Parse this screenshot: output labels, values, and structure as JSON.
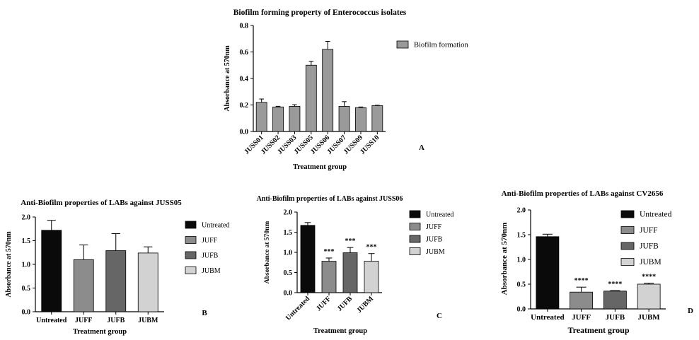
{
  "chart_data": [
    {
      "panel": "A",
      "type": "bar",
      "title": "Biofilm forming property of Enterococcus isolates",
      "xlabel": "Treatment group",
      "ylabel": "Absorbance at 570nm",
      "ylim": [
        0,
        0.8
      ],
      "yticks": [
        "0.0",
        "0.2",
        "0.4",
        "0.6",
        "0.8"
      ],
      "categories": [
        "JUSS01",
        "JUSS02",
        "JUSS03",
        "JUSS05",
        "JUSS06",
        "JUSS07",
        "JUSS09",
        "JUSS10"
      ],
      "series": [
        {
          "name": "Biofilm formation",
          "values": [
            0.22,
            0.185,
            0.19,
            0.5,
            0.62,
            0.19,
            0.18,
            0.195
          ],
          "errors": [
            0.025,
            0.005,
            0.012,
            0.03,
            0.06,
            0.035,
            0.005,
            0.003
          ]
        }
      ],
      "bar_colors": [
        "#9a9a9a"
      ],
      "legend_position": "right",
      "grid": false,
      "annotations": []
    },
    {
      "panel": "B",
      "type": "bar",
      "title": "Anti-Biofilm properties of LABs against JUSS05",
      "xlabel": "Treatment group",
      "ylabel": "Absorbance at 570nm",
      "ylim": [
        0,
        2.0
      ],
      "yticks": [
        "0.0",
        "0.5",
        "1.0",
        "1.5",
        "2.0"
      ],
      "categories": [
        "Untreated",
        "JUFF",
        "JUFB",
        "JUBM"
      ],
      "values": [
        1.72,
        1.1,
        1.29,
        1.24
      ],
      "errors": [
        0.21,
        0.31,
        0.36,
        0.13
      ],
      "bar_colors": [
        "#0a0a0a",
        "#8c8c8c",
        "#666666",
        "#d2d2d2"
      ],
      "legend": [
        "Untreated",
        "JUFF",
        "JUFB",
        "JUBM"
      ],
      "legend_position": "right",
      "grid": false,
      "annotations": []
    },
    {
      "panel": "C",
      "type": "bar",
      "title": "Anti-Biofilm properties of LABs against JUSS06",
      "xlabel": "Treatment group",
      "ylabel": "Absorbance at 570nm",
      "ylim": [
        0,
        2.0
      ],
      "yticks": [
        "0.0",
        "0.5",
        "1.0",
        "1.5",
        "2.0"
      ],
      "categories": [
        "Untreated",
        "JUFF",
        "JUFB",
        "JUBM"
      ],
      "values": [
        1.67,
        0.78,
        0.99,
        0.78
      ],
      "errors": [
        0.07,
        0.08,
        0.13,
        0.19
      ],
      "bar_colors": [
        "#0a0a0a",
        "#8c8c8c",
        "#666666",
        "#d2d2d2"
      ],
      "legend": [
        "Untreated",
        "JUFF",
        "JUFB",
        "JUBM"
      ],
      "legend_position": "right",
      "grid": false,
      "annotations": [
        "",
        "***",
        "***",
        "***"
      ]
    },
    {
      "panel": "D",
      "type": "bar",
      "title": "Anti-Biofilm properties of LABs against CV2656",
      "xlabel": "Treatment group",
      "ylabel": "Absorbance at 570nm",
      "ylim": [
        0,
        2.0
      ],
      "yticks": [
        "0.0",
        "0.5",
        "1.0",
        "1.5",
        "2.0"
      ],
      "categories": [
        "Untreated",
        "JUFF",
        "JUFB",
        "JUBM"
      ],
      "values": [
        1.46,
        0.34,
        0.36,
        0.5
      ],
      "errors": [
        0.05,
        0.1,
        0.01,
        0.02
      ],
      "bar_colors": [
        "#0a0a0a",
        "#8c8c8c",
        "#666666",
        "#d2d2d2"
      ],
      "legend": [
        "Untreated",
        "JUFF",
        "JUFB",
        "JUBM"
      ],
      "legend_position": "right",
      "grid": false,
      "annotations": [
        "",
        "****",
        "****",
        "****"
      ]
    }
  ]
}
